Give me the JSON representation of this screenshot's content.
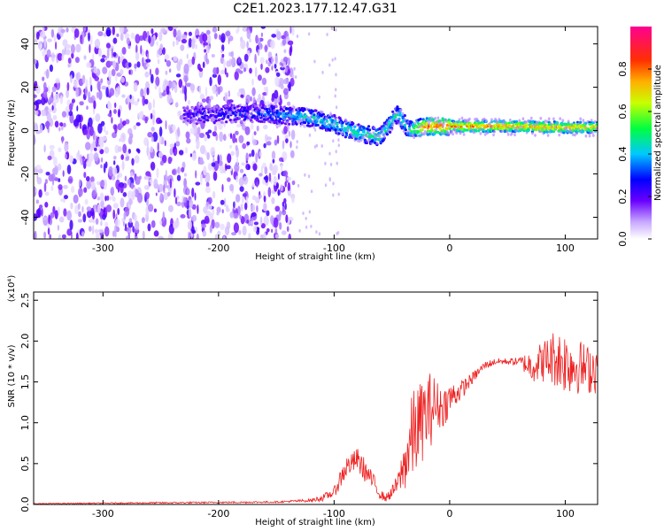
{
  "title": "C2E1.2023.177.12.47.G31",
  "chart_data": [
    {
      "type": "heatmap",
      "title": "C2E1.2023.177.12.47.G31",
      "xlabel": "Height of straight line (km)",
      "ylabel": "Frequency (Hz)",
      "xlim": [
        -360,
        128
      ],
      "ylim": [
        -50,
        48
      ],
      "x_ticks": [
        -300,
        -200,
        -100,
        0,
        100
      ],
      "y_ticks": [
        -40,
        -20,
        0,
        20,
        40
      ],
      "colorbar": {
        "label": "Normalized spectral amplitude",
        "range": [
          0.0,
          1.0
        ],
        "ticks": [
          0.0,
          0.2,
          0.4,
          0.6,
          0.8
        ],
        "colors": [
          "#ffffff",
          "#6a00ff",
          "#0000ff",
          "#00c8ff",
          "#00ff40",
          "#ffff00",
          "#ff8000",
          "#ff0000",
          "#ff00a0"
        ]
      },
      "noise_region_x": [
        -360,
        -135
      ],
      "signal_ridge": [
        {
          "x": -230,
          "freq": 7,
          "amp": 0.25
        },
        {
          "x": -170,
          "freq": 8,
          "amp": 0.3
        },
        {
          "x": -140,
          "freq": 7,
          "amp": 0.4
        },
        {
          "x": -120,
          "freq": 6,
          "amp": 0.45
        },
        {
          "x": -100,
          "freq": 3,
          "amp": 0.45
        },
        {
          "x": -80,
          "freq": -1,
          "amp": 0.5
        },
        {
          "x": -60,
          "freq": -3,
          "amp": 0.5
        },
        {
          "x": -45,
          "freq": 8,
          "amp": 0.45
        },
        {
          "x": -35,
          "freq": 0,
          "amp": 0.5
        },
        {
          "x": -20,
          "freq": 2,
          "amp": 0.8
        },
        {
          "x": 0,
          "freq": 2,
          "amp": 0.8
        },
        {
          "x": 50,
          "freq": 2,
          "amp": 0.75
        },
        {
          "x": 100,
          "freq": 1.5,
          "amp": 0.75
        },
        {
          "x": 128,
          "freq": 1.5,
          "amp": 0.7
        }
      ]
    },
    {
      "type": "line",
      "xlabel": "Height of straight line (km)",
      "ylabel": "SNR (10 * v/v)",
      "y_scale_note": "(x10⁴)",
      "xlim": [
        -360,
        128
      ],
      "ylim": [
        0,
        2.6
      ],
      "x_ticks": [
        -300,
        -200,
        -100,
        0,
        100
      ],
      "y_ticks": [
        0.0,
        0.5,
        1.0,
        1.5,
        2.0,
        2.5
      ],
      "color": "#ee2222",
      "series": [
        {
          "x": [
            -360,
            -250,
            -150,
            -120,
            -110,
            -100,
            -95,
            -90,
            -85,
            -80,
            -75,
            -70,
            -65,
            -60,
            -55,
            -50,
            -45,
            -40,
            -35,
            -30,
            -25,
            -20,
            -15,
            -10,
            -5,
            0,
            10,
            20,
            30,
            40,
            50,
            60,
            70,
            80,
            90,
            100,
            110,
            120,
            128
          ],
          "values": [
            0.01,
            0.02,
            0.03,
            0.05,
            0.08,
            0.15,
            0.3,
            0.45,
            0.5,
            0.55,
            0.45,
            0.35,
            0.25,
            0.12,
            0.08,
            0.15,
            0.25,
            0.45,
            0.7,
            0.9,
            1.0,
            1.1,
            1.2,
            1.2,
            1.2,
            1.3,
            1.4,
            1.55,
            1.7,
            1.75,
            1.75,
            1.75,
            1.7,
            1.75,
            1.8,
            1.75,
            1.7,
            1.65,
            1.7
          ],
          "spread": [
            0.005,
            0.01,
            0.01,
            0.02,
            0.04,
            0.06,
            0.12,
            0.15,
            0.12,
            0.15,
            0.15,
            0.12,
            0.1,
            0.06,
            0.05,
            0.08,
            0.12,
            0.3,
            0.5,
            0.6,
            0.5,
            0.5,
            0.45,
            0.3,
            0.25,
            0.2,
            0.12,
            0.07,
            0.05,
            0.04,
            0.04,
            0.05,
            0.2,
            0.25,
            0.35,
            0.4,
            0.35,
            0.3,
            0.35
          ]
        }
      ]
    }
  ]
}
